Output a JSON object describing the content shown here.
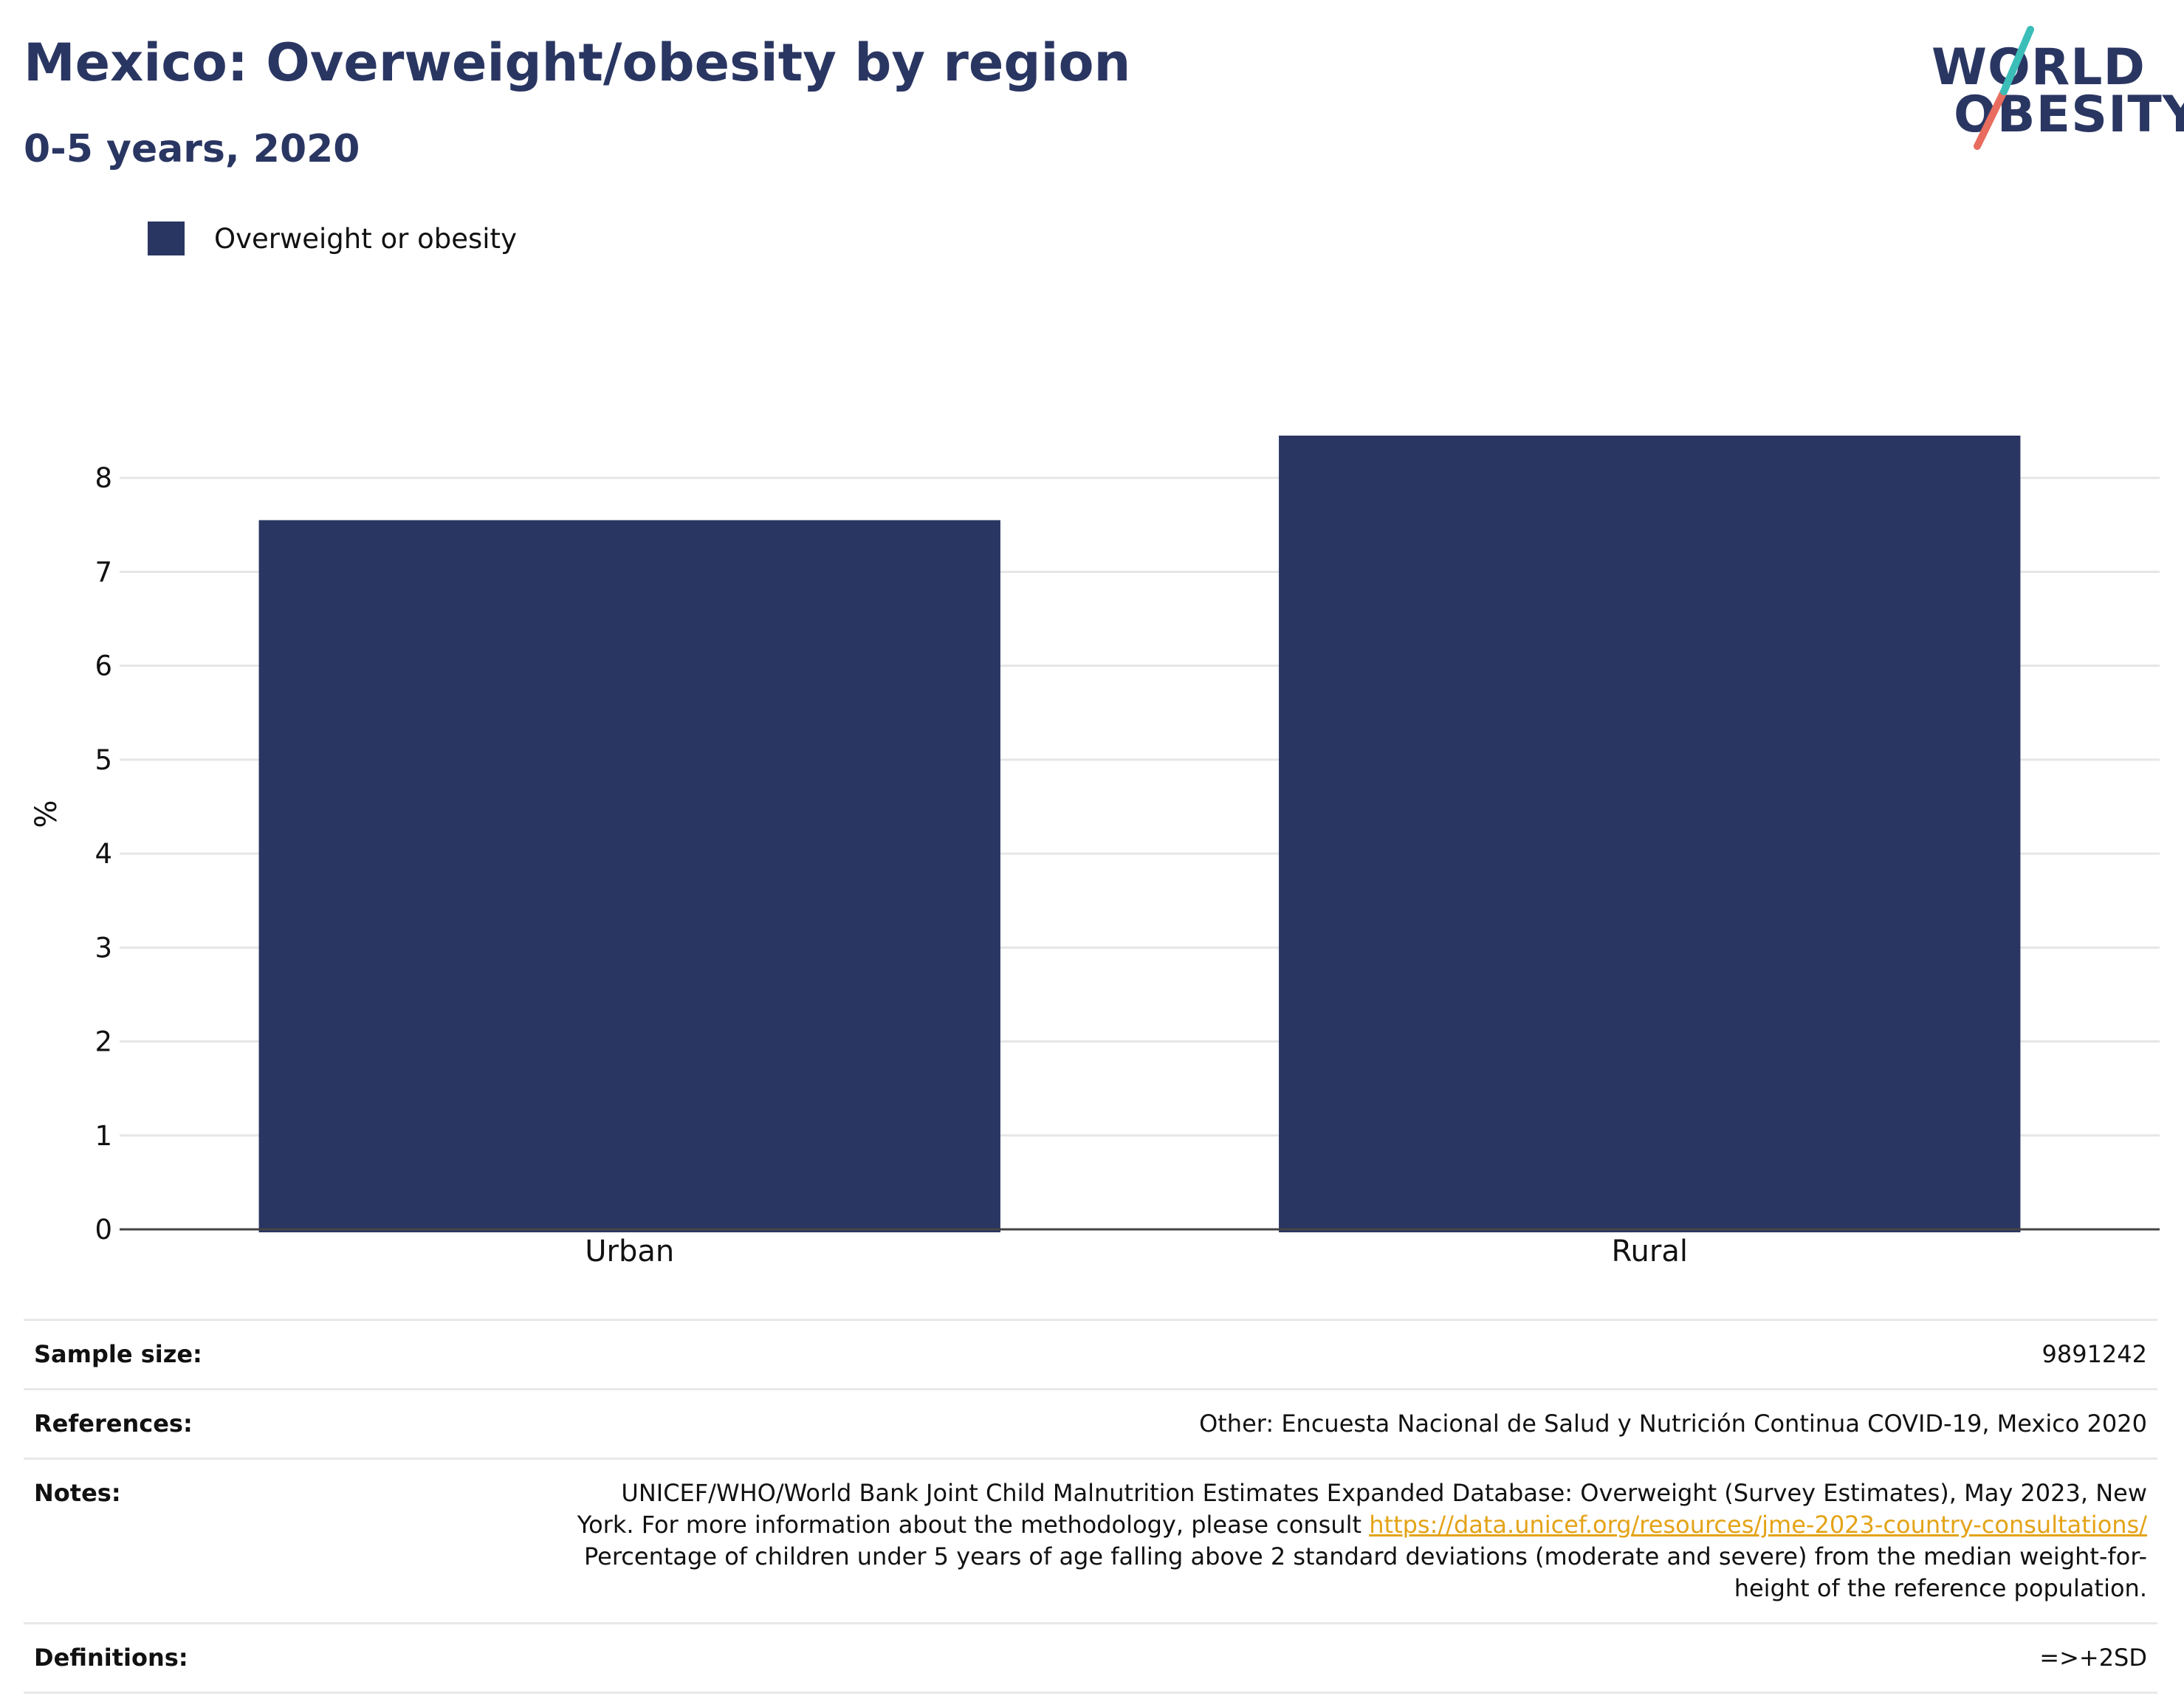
{
  "title": "Mexico: Overweight/obesity by region",
  "subtitle": "0-5 years, 2020",
  "logo": {
    "line1": "WORLD",
    "line2": "OBESITY",
    "colors": [
      "#3bbdb8",
      "#e86d5f"
    ]
  },
  "colors": {
    "bar": "#2a3662",
    "title": "#2a3662",
    "link": "#e4a316"
  },
  "chart_data": {
    "type": "bar",
    "title": "Mexico: Overweight/obesity by region",
    "subtitle": "0-5 years, 2020",
    "categories": [
      "Urban",
      "Rural"
    ],
    "series": [
      {
        "name": "Overweight or obesity",
        "values": [
          7.55,
          8.45
        ]
      }
    ],
    "xlabel": "",
    "ylabel": "%",
    "ylim": [
      0,
      9
    ],
    "yticks": [
      0,
      1,
      2,
      3,
      4,
      5,
      6,
      7,
      8
    ],
    "grid": true,
    "legend_position": "top-left"
  },
  "info": {
    "sample_size": {
      "label": "Sample size:",
      "value": "9891242"
    },
    "references": {
      "label": "References:",
      "value": "Other: Encuesta Nacional de Salud y Nutrición Continua COVID-19, Mexico 2020"
    },
    "notes": {
      "label": "Notes:",
      "line1": "UNICEF/WHO/World Bank Joint Child Malnutrition Estimates Expanded Database: Overweight (Survey Estimates), May 2023, New",
      "line2_prefix": "York. For more information about the methodology, please consult ",
      "link": "https://data.unicef.org/resources/jme-2023-country-consultations/",
      "line3": "Percentage of children under 5 years of age falling above 2 standard deviations (moderate and severe) from the median weight-for-",
      "line4": "height of the reference population."
    },
    "definitions": {
      "label": "Definitions:",
      "value": "=>+2SD"
    }
  }
}
